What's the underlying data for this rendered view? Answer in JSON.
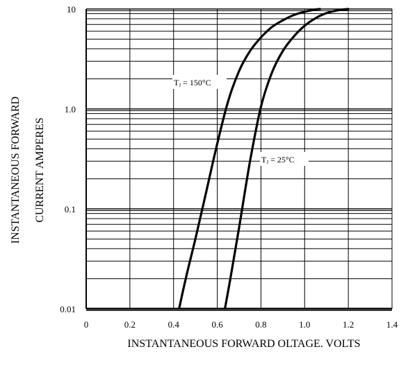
{
  "chart_data": {
    "type": "line",
    "title": "",
    "xlabel": "INSTANTANEOUS FORWARD OLTAGE. VOLTS",
    "ylabel_lines": [
      "INSTANTANEOUS FORWARD",
      "CURRENT AMPERES"
    ],
    "xlim": [
      0,
      1.4
    ],
    "ylim": [
      0.01,
      10
    ],
    "yscale": "log",
    "x_ticks": [
      0,
      0.2,
      0.4,
      0.6,
      0.8,
      1.0,
      1.2,
      1.4
    ],
    "x_tick_labels": [
      "0",
      "0.2",
      "0.4",
      "0.6",
      "0.8",
      "1.0",
      "1.2",
      "1.4"
    ],
    "y_ticks": [
      0.01,
      0.1,
      1.0,
      10
    ],
    "y_tick_labels": [
      "0.01",
      "0.1",
      "1.0",
      "10"
    ],
    "grid": true,
    "series": [
      {
        "name": "TJ = 150°C",
        "x": [
          0.425,
          0.46,
          0.5,
          0.55,
          0.6,
          0.65,
          0.7,
          0.75,
          0.8,
          0.85,
          0.9,
          0.95,
          1.0,
          1.05,
          1.07
        ],
        "y": [
          0.01,
          0.022,
          0.05,
          0.15,
          0.45,
          1.2,
          2.4,
          3.8,
          5.2,
          6.6,
          7.7,
          8.7,
          9.4,
          9.9,
          10
        ]
      },
      {
        "name": "TJ = 25°C",
        "x": [
          0.635,
          0.66,
          0.7,
          0.75,
          0.8,
          0.85,
          0.9,
          0.95,
          1.0,
          1.05,
          1.1,
          1.15,
          1.2
        ],
        "y": [
          0.01,
          0.02,
          0.065,
          0.3,
          1.05,
          2.3,
          3.8,
          5.3,
          6.8,
          8.1,
          9.1,
          9.7,
          10
        ]
      }
    ],
    "annotations": [
      {
        "text": "T",
        "sub": "J",
        "rest": " = 150°C",
        "series": 0
      },
      {
        "text": "T",
        "sub": "J",
        "rest": " = 25°C",
        "series": 1
      }
    ]
  }
}
